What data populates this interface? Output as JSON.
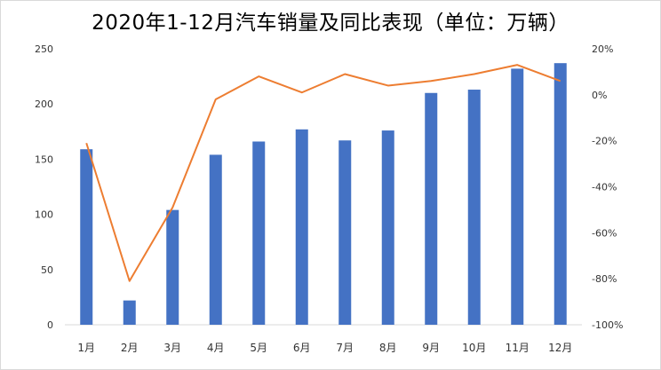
{
  "chart_data": {
    "type": "bar",
    "title": "2020年1-12月汽车销量及同比表现（单位：万辆）",
    "categories": [
      "1月",
      "2月",
      "3月",
      "4月",
      "5月",
      "6月",
      "7月",
      "8月",
      "9月",
      "10月",
      "11月",
      "12月"
    ],
    "series": [
      {
        "axis": "left",
        "type": "bar",
        "color": "#4472c4",
        "values": [
          159,
          22,
          104,
          154,
          166,
          177,
          167,
          176,
          210,
          213,
          232,
          237
        ]
      },
      {
        "axis": "right",
        "type": "line",
        "color": "#ed7d31",
        "values": [
          -21,
          -81,
          -49,
          -2,
          8,
          1,
          9,
          4,
          6,
          9,
          13,
          6
        ]
      }
    ],
    "left_axis": {
      "ylim": [
        0,
        250
      ],
      "ticks": [
        "0",
        "50",
        "100",
        "150",
        "200",
        "250"
      ]
    },
    "right_axis": {
      "ylim": [
        -100,
        20
      ],
      "unit": "%",
      "ticks": [
        "-100%",
        "-80%",
        "-60%",
        "-40%",
        "-20%",
        "0%",
        "20%"
      ]
    },
    "grid": false
  }
}
